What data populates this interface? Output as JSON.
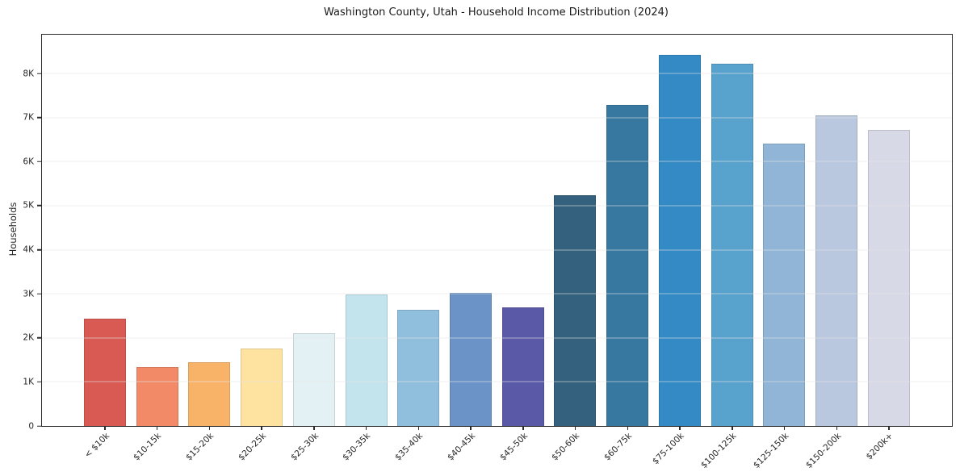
{
  "chart_data": {
    "type": "bar",
    "title": "Washington County, Utah - Household Income Distribution (2024)",
    "xlabel": "",
    "ylabel": "Households",
    "categories": [
      "< $10k",
      "$10-15k",
      "$15-20k",
      "$20-25k",
      "$25-30k",
      "$30-35k",
      "$35-40k",
      "$40-45k",
      "$45-50k",
      "$50-60k",
      "$60-75k",
      "$75-100k",
      "$100-125k",
      "$125-150k",
      "$150-200k",
      "$200k+"
    ],
    "values": [
      2440,
      1340,
      1450,
      1760,
      2100,
      2990,
      2630,
      3020,
      2700,
      5230,
      7280,
      8420,
      8220,
      6410,
      7050,
      6720
    ],
    "bar_colors": [
      "#d85a52",
      "#f28a68",
      "#f9b369",
      "#fde2a0",
      "#e4f1f4",
      "#c3e4ed",
      "#90bedd",
      "#6b93c7",
      "#5a59a8",
      "#34627e",
      "#36789f",
      "#338ac4",
      "#58a3cd",
      "#90b5d7",
      "#b9c8de",
      "#d7d9e7"
    ],
    "yticks": [
      0,
      1000,
      2000,
      3000,
      4000,
      5000,
      6000,
      7000,
      8000
    ],
    "ytick_labels": [
      "0",
      "1K",
      "2K",
      "3K",
      "4K",
      "5K",
      "6K",
      "7K",
      "8K"
    ],
    "ylim": [
      0,
      8880
    ],
    "grid": "horizontal",
    "legend_position": "none"
  },
  "styles": {
    "background": "#ffffff",
    "grid_color": "#e4e4e4",
    "spine_color": "#2b2b2b",
    "text_color": "#262626",
    "title_color": "#1a1a1a"
  }
}
